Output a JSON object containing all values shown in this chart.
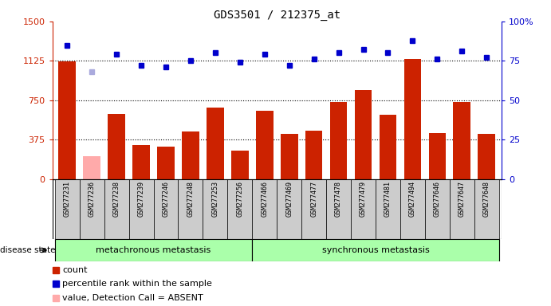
{
  "title": "GDS3501 / 212375_at",
  "samples": [
    "GSM277231",
    "GSM277236",
    "GSM277238",
    "GSM277239",
    "GSM277246",
    "GSM277248",
    "GSM277253",
    "GSM277256",
    "GSM277466",
    "GSM277469",
    "GSM277477",
    "GSM277478",
    "GSM277479",
    "GSM277481",
    "GSM277494",
    "GSM277646",
    "GSM277647",
    "GSM277648"
  ],
  "counts": [
    1120,
    null,
    620,
    320,
    310,
    450,
    680,
    270,
    650,
    430,
    460,
    730,
    850,
    610,
    1140,
    440,
    730,
    430
  ],
  "absent_count": [
    null,
    220,
    null,
    null,
    null,
    null,
    null,
    null,
    null,
    null,
    null,
    null,
    null,
    null,
    null,
    null,
    null,
    null
  ],
  "percentile_ranks": [
    85,
    null,
    79,
    72,
    71,
    75,
    80,
    74,
    79,
    72,
    76,
    80,
    82,
    80,
    88,
    76,
    81,
    77
  ],
  "absent_rank": [
    null,
    68,
    null,
    null,
    null,
    null,
    null,
    null,
    null,
    null,
    null,
    null,
    null,
    null,
    null,
    null,
    null,
    null
  ],
  "group1_count": 8,
  "group2_count": 10,
  "group1_label": "metachronous metastasis",
  "group2_label": "synchronous metastasis",
  "disease_state_label": "disease state",
  "bar_color": "#cc2200",
  "bar_absent_color": "#ffaaaa",
  "dot_color": "#0000cc",
  "dot_absent_color": "#aaaadd",
  "ylim_left": [
    0,
    1500
  ],
  "ylim_right": [
    0,
    100
  ],
  "yticks_left": [
    0,
    375,
    750,
    1125,
    1500
  ],
  "yticks_right": [
    0,
    25,
    50,
    75,
    100
  ],
  "hlines": [
    375,
    750,
    1125
  ],
  "background_color": "#ffffff",
  "group_bg": "#aaffaa",
  "ticklabel_bg": "#cccccc"
}
